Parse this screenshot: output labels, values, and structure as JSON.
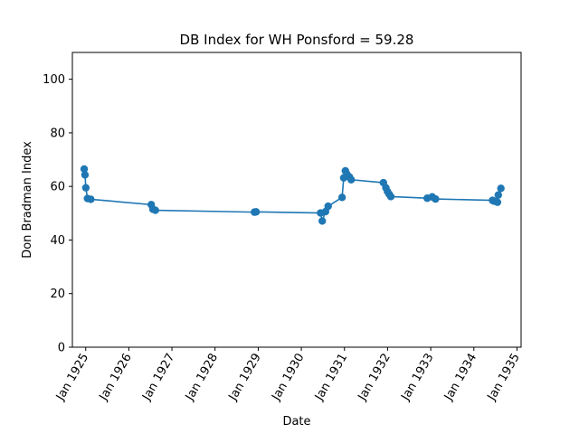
{
  "chart_data": {
    "type": "line",
    "title": "DB Index for WH Ponsford = 59.28",
    "xlabel": "Date",
    "ylabel": "Don Bradman Index",
    "ylim": [
      0,
      110
    ],
    "xlim": [
      "1924-09-10",
      "1935-02-05"
    ],
    "y_ticks": [
      0,
      20,
      40,
      60,
      80,
      100
    ],
    "x_ticks": [
      {
        "date": "1925-01-01",
        "label": "Jan 1925"
      },
      {
        "date": "1926-01-01",
        "label": "Jan 1926"
      },
      {
        "date": "1927-01-01",
        "label": "Jan 1927"
      },
      {
        "date": "1928-01-01",
        "label": "Jan 1928"
      },
      {
        "date": "1929-01-01",
        "label": "Jan 1929"
      },
      {
        "date": "1930-01-01",
        "label": "Jan 1930"
      },
      {
        "date": "1931-01-01",
        "label": "Jan 1931"
      },
      {
        "date": "1932-01-01",
        "label": "Jan 1932"
      },
      {
        "date": "1933-01-01",
        "label": "Jan 1933"
      },
      {
        "date": "1934-01-01",
        "label": "Jan 1934"
      },
      {
        "date": "1935-01-01",
        "label": "Jan 1935"
      }
    ],
    "grid": false,
    "series": [
      {
        "color": "#1f77b4",
        "marker": "circle",
        "points": [
          {
            "x": "1924-12-19",
            "y": 66.5
          },
          {
            "x": "1924-12-26",
            "y": 64.3
          },
          {
            "x": "1925-01-02",
            "y": 59.5
          },
          {
            "x": "1925-01-16",
            "y": 55.5
          },
          {
            "x": "1925-02-13",
            "y": 55.2
          },
          {
            "x": "1926-07-10",
            "y": 53.2
          },
          {
            "x": "1926-07-24",
            "y": 51.5
          },
          {
            "x": "1926-08-14",
            "y": 51.1
          },
          {
            "x": "1928-11-30",
            "y": 50.4
          },
          {
            "x": "1928-12-14",
            "y": 50.5
          },
          {
            "x": "1930-06-13",
            "y": 50.1
          },
          {
            "x": "1930-06-27",
            "y": 47.1
          },
          {
            "x": "1930-07-25",
            "y": 50.6
          },
          {
            "x": "1930-08-16",
            "y": 52.6
          },
          {
            "x": "1930-12-12",
            "y": 55.9
          },
          {
            "x": "1930-12-26",
            "y": 63.2
          },
          {
            "x": "1931-01-09",
            "y": 65.8
          },
          {
            "x": "1931-01-23",
            "y": 64.5
          },
          {
            "x": "1931-02-13",
            "y": 63.5
          },
          {
            "x": "1931-02-27",
            "y": 62.5
          },
          {
            "x": "1931-11-27",
            "y": 61.4
          },
          {
            "x": "1931-12-18",
            "y": 59.5
          },
          {
            "x": "1932-01-01",
            "y": 58.1
          },
          {
            "x": "1932-01-15",
            "y": 57.1
          },
          {
            "x": "1932-01-29",
            "y": 56.2
          },
          {
            "x": "1932-12-02",
            "y": 55.6
          },
          {
            "x": "1933-01-13",
            "y": 56.1
          },
          {
            "x": "1933-02-10",
            "y": 55.3
          },
          {
            "x": "1934-06-08",
            "y": 54.8
          },
          {
            "x": "1934-06-22",
            "y": 54.5
          },
          {
            "x": "1934-07-20",
            "y": 54.1
          },
          {
            "x": "1934-07-27",
            "y": 56.8
          },
          {
            "x": "1934-08-18",
            "y": 59.28
          }
        ]
      }
    ]
  }
}
